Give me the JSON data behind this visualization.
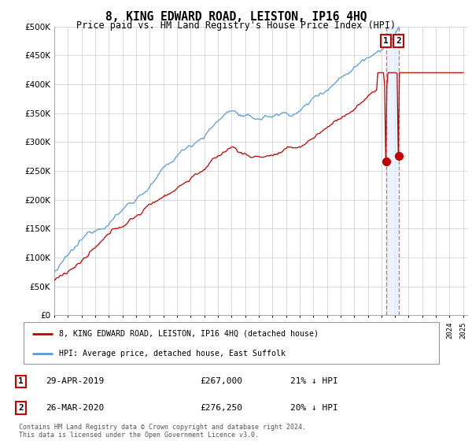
{
  "title": "8, KING EDWARD ROAD, LEISTON, IP16 4HQ",
  "subtitle": "Price paid vs. HM Land Registry's House Price Index (HPI)",
  "legend_line1": "8, KING EDWARD ROAD, LEISTON, IP16 4HQ (detached house)",
  "legend_line2": "HPI: Average price, detached house, East Suffolk",
  "transaction1_date": "29-APR-2019",
  "transaction1_price": "£267,000",
  "transaction1_hpi": "21% ↓ HPI",
  "transaction2_date": "26-MAR-2020",
  "transaction2_price": "£276,250",
  "transaction2_hpi": "20% ↓ HPI",
  "footer": "Contains HM Land Registry data © Crown copyright and database right 2024.\nThis data is licensed under the Open Government Licence v3.0.",
  "hpi_color": "#5b9bd5",
  "price_color": "#c00000",
  "marker_color": "#c00000",
  "dashed_line_color": "#e06060",
  "shade_color": "#ddeeff",
  "background_color": "#ffffff",
  "grid_color": "#cccccc",
  "ylim": [
    0,
    500000
  ],
  "yticks": [
    0,
    50000,
    100000,
    150000,
    200000,
    250000,
    300000,
    350000,
    400000,
    450000,
    500000
  ],
  "year_start": 1995,
  "year_end": 2025,
  "transaction1_year": 2019.33,
  "transaction2_year": 2020.25
}
